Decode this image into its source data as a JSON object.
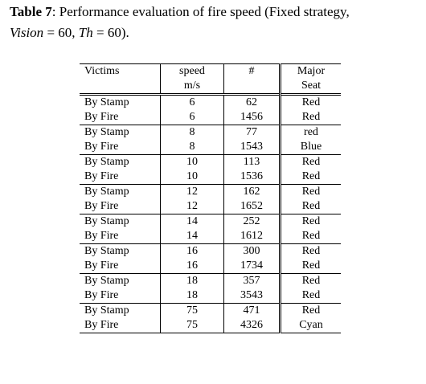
{
  "caption": {
    "label": "Table 7",
    "text_1": ": Performance evaluation of fire speed (Fixed strategy,",
    "vision_var": "Vision",
    "text_2": " = 60, ",
    "th_var": "Th",
    "text_3": " = 60)."
  },
  "headers": {
    "victims": "Victims",
    "speed": "speed",
    "speed_unit": "m/s",
    "count": "#",
    "seat_line1": "Major",
    "seat_line2": "Seat"
  },
  "rows": [
    {
      "victims": "By Stamp",
      "speed": "6",
      "count": "62",
      "seat": "Red"
    },
    {
      "victims": "By Fire",
      "speed": "6",
      "count": "1456",
      "seat": "Red"
    },
    {
      "victims": "By Stamp",
      "speed": "8",
      "count": "77",
      "seat": "red"
    },
    {
      "victims": "By Fire",
      "speed": "8",
      "count": "1543",
      "seat": "Blue"
    },
    {
      "victims": "By Stamp",
      "speed": "10",
      "count": "113",
      "seat": "Red"
    },
    {
      "victims": "By Fire",
      "speed": "10",
      "count": "1536",
      "seat": "Red"
    },
    {
      "victims": "By Stamp",
      "speed": "12",
      "count": "162",
      "seat": "Red"
    },
    {
      "victims": "By Fire",
      "speed": "12",
      "count": "1652",
      "seat": "Red"
    },
    {
      "victims": "By Stamp",
      "speed": "14",
      "count": "252",
      "seat": "Red"
    },
    {
      "victims": "By Fire",
      "speed": "14",
      "count": "1612",
      "seat": "Red"
    },
    {
      "victims": "By Stamp",
      "speed": "16",
      "count": "300",
      "seat": "Red"
    },
    {
      "victims": "By Fire",
      "speed": "16",
      "count": "1734",
      "seat": "Red"
    },
    {
      "victims": "By Stamp",
      "speed": "18",
      "count": "357",
      "seat": "Red"
    },
    {
      "victims": "By Fire",
      "speed": "18",
      "count": "3543",
      "seat": "Red"
    },
    {
      "victims": "By Stamp",
      "speed": "75",
      "count": "471",
      "seat": "Red"
    },
    {
      "victims": "By Fire",
      "speed": "75",
      "count": "4326",
      "seat": "Cyan"
    }
  ]
}
